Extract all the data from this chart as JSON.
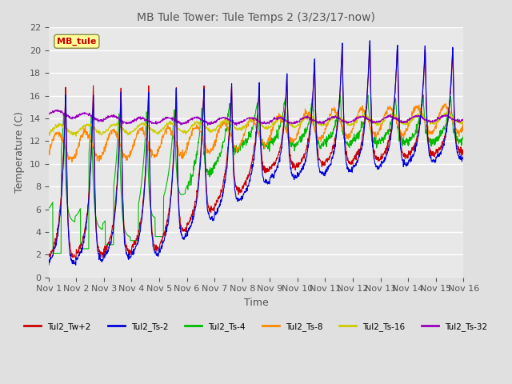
{
  "title": "MB Tule Tower: Tule Temps 2 (3/23/17-now)",
  "xlabel": "Time",
  "ylabel": "Temperature (C)",
  "ylim": [
    0,
    22
  ],
  "yticks": [
    0,
    2,
    4,
    6,
    8,
    10,
    12,
    14,
    16,
    18,
    20,
    22
  ],
  "xtick_labels": [
    "Nov 1",
    "Nov 2",
    "Nov 3",
    "Nov 4",
    "Nov 5",
    "Nov 6",
    "Nov 7",
    "Nov 8",
    "Nov 9",
    "Nov 10",
    "Nov 11",
    "Nov 12",
    "Nov 13",
    "Nov 14",
    "Nov 15",
    "Nov 16"
  ],
  "legend_entries": [
    {
      "label": "Tul2_Tw+2",
      "color": "#cc0000"
    },
    {
      "label": "Tul2_Ts-2",
      "color": "#0000dd"
    },
    {
      "label": "Tul2_Ts-4",
      "color": "#00bb00"
    },
    {
      "label": "Tul2_Ts-8",
      "color": "#ff8800"
    },
    {
      "label": "Tul2_Ts-16",
      "color": "#cccc00"
    },
    {
      "label": "Tul2_Ts-32",
      "color": "#9900bb"
    }
  ],
  "annotation_label": "MB_tule",
  "annotation_color": "#cc0000",
  "bg_color": "#e0e0e0",
  "plot_bg_color": "#e8e8e8",
  "grid_color": "#ffffff",
  "n_days": 15,
  "pts_per_day": 96
}
